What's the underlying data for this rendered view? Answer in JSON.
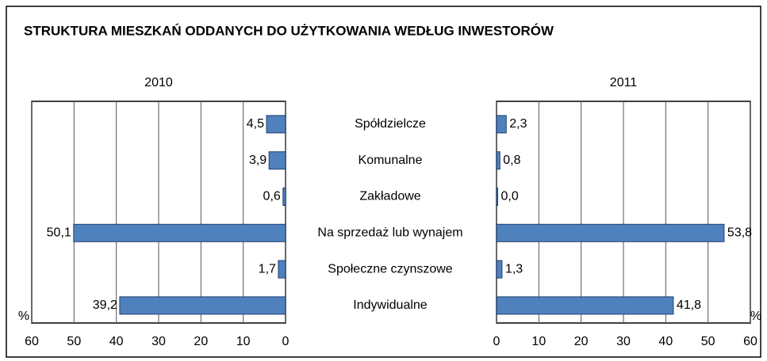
{
  "title": "STRUKTURA MIESZKAŃ ODDANYCH DO UŻYTKOWANIA WEDŁUG INWESTORÓW",
  "chart_data": [
    {
      "type": "bar",
      "orientation": "horizontal",
      "title": "2010",
      "xlabel": "%",
      "categories": [
        "Spółdzielcze",
        "Komunalne",
        "Zakładowe",
        "Na sprzedaż lub wynajem",
        "Społeczne czynszowe",
        "Indywidualne"
      ],
      "values": [
        4.5,
        3.9,
        0.6,
        50.1,
        1.7,
        39.2
      ],
      "value_labels": [
        "4,5",
        "3,9",
        "0,6",
        "50,1",
        "1,7",
        "39,2"
      ],
      "color": "#4f81bd",
      "xlim": [
        60,
        0
      ],
      "xticks": [
        60,
        50,
        40,
        30,
        20,
        10,
        0
      ],
      "grid": true
    },
    {
      "type": "bar",
      "orientation": "horizontal",
      "title": "2011",
      "xlabel": "%",
      "values": [
        2.3,
        0.8,
        0.0,
        53.8,
        1.3,
        41.8
      ],
      "value_labels": [
        "2,3",
        "0,8",
        "0,0",
        "53,8",
        "1,3",
        "41,8"
      ],
      "color": "#4f81bd",
      "xlim": [
        0,
        60
      ],
      "xticks": [
        0,
        10,
        20,
        30,
        40,
        50,
        60
      ],
      "grid": true
    }
  ]
}
